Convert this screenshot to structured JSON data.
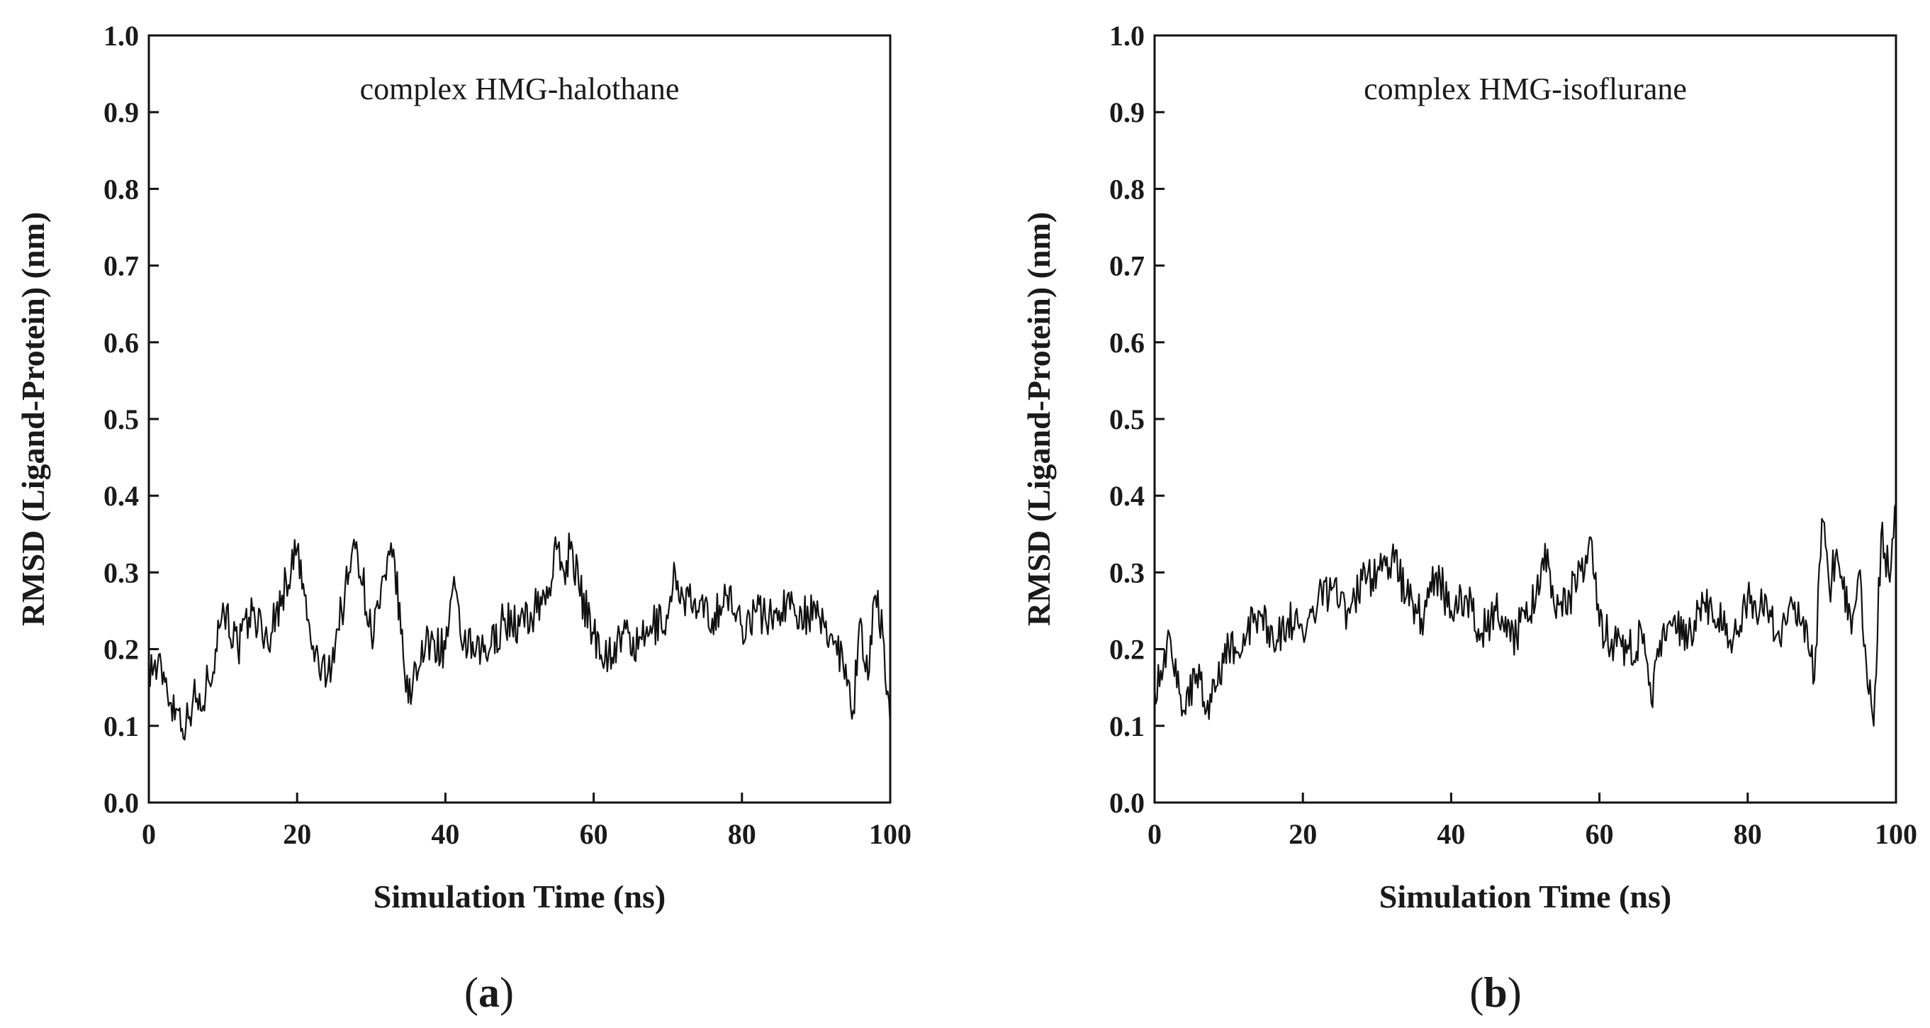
{
  "chart_data": [
    {
      "type": "line",
      "panel": "a",
      "annotation": "complex HMG-halothane",
      "xlabel": "Simulation Time (ns)",
      "ylabel": "RMSD (Ligand-Protein) (nm)",
      "xlim": [
        0,
        100
      ],
      "ylim": [
        0.0,
        1.0
      ],
      "xticks": [
        "0",
        "20",
        "40",
        "60",
        "80",
        "100"
      ],
      "yticks": [
        "0.0",
        "0.1",
        "0.2",
        "0.3",
        "0.4",
        "0.5",
        "0.6",
        "0.7",
        "0.8",
        "0.9",
        "1.0"
      ],
      "caption_open": "(",
      "caption_letter": "a",
      "caption_close": ")",
      "line_color": "#111111",
      "series": [
        {
          "name": "RMSD",
          "x": [
            0,
            2,
            3,
            4,
            5,
            6,
            7,
            8,
            9,
            10,
            12,
            14,
            16,
            18,
            20,
            22,
            24,
            26,
            27,
            28,
            30,
            32,
            33,
            34,
            35,
            36,
            38,
            40,
            41,
            42,
            44,
            46,
            48,
            50,
            52,
            54,
            55,
            56,
            57,
            58,
            60,
            62,
            64,
            66,
            68,
            70,
            71,
            72,
            74,
            76,
            78,
            80,
            82,
            84,
            86,
            88,
            90,
            92,
            94,
            95,
            96,
            97,
            98,
            99,
            100
          ],
          "values": [
            0.18,
            0.17,
            0.13,
            0.12,
            0.1,
            0.14,
            0.12,
            0.16,
            0.2,
            0.26,
            0.2,
            0.25,
            0.21,
            0.27,
            0.33,
            0.2,
            0.16,
            0.25,
            0.3,
            0.34,
            0.22,
            0.29,
            0.33,
            0.22,
            0.13,
            0.18,
            0.21,
            0.2,
            0.28,
            0.22,
            0.19,
            0.2,
            0.24,
            0.23,
            0.25,
            0.28,
            0.33,
            0.3,
            0.34,
            0.28,
            0.22,
            0.19,
            0.22,
            0.2,
            0.23,
            0.24,
            0.3,
            0.27,
            0.25,
            0.24,
            0.27,
            0.23,
            0.25,
            0.24,
            0.26,
            0.25,
            0.24,
            0.22,
            0.18,
            0.12,
            0.24,
            0.16,
            0.27,
            0.22,
            0.1
          ]
        }
      ]
    },
    {
      "type": "line",
      "panel": "b",
      "annotation": "complex HMG-isoflurane",
      "xlabel": "Simulation Time (ns)",
      "ylabel": "RMSD (Ligand-Protein) (nm)",
      "xlim": [
        0,
        100
      ],
      "ylim": [
        0.0,
        1.0
      ],
      "xticks": [
        "0",
        "20",
        "40",
        "60",
        "80",
        "100"
      ],
      "yticks": [
        "0.0",
        "0.1",
        "0.2",
        "0.3",
        "0.4",
        "0.5",
        "0.6",
        "0.7",
        "0.8",
        "0.9",
        "1.0"
      ],
      "caption_open": "(",
      "caption_letter": "b",
      "caption_close": ")",
      "line_color": "#111111",
      "series": [
        {
          "name": "RMSD",
          "x": [
            0,
            2,
            3,
            4,
            6,
            7,
            8,
            10,
            12,
            14,
            16,
            18,
            20,
            22,
            24,
            26,
            28,
            30,
            32,
            34,
            36,
            38,
            40,
            42,
            44,
            46,
            48,
            50,
            52,
            53,
            54,
            56,
            58,
            59,
            60,
            62,
            64,
            66,
            67,
            68,
            70,
            72,
            74,
            76,
            78,
            80,
            82,
            84,
            86,
            88,
            89,
            90,
            91,
            92,
            94,
            95,
            96,
            97,
            98,
            99,
            100
          ],
          "values": [
            0.15,
            0.22,
            0.15,
            0.12,
            0.18,
            0.12,
            0.16,
            0.2,
            0.22,
            0.25,
            0.21,
            0.24,
            0.22,
            0.26,
            0.28,
            0.25,
            0.29,
            0.3,
            0.32,
            0.27,
            0.24,
            0.3,
            0.25,
            0.27,
            0.22,
            0.25,
            0.21,
            0.24,
            0.28,
            0.33,
            0.25,
            0.27,
            0.3,
            0.34,
            0.23,
            0.21,
            0.2,
            0.22,
            0.13,
            0.19,
            0.24,
            0.22,
            0.26,
            0.24,
            0.21,
            0.27,
            0.25,
            0.22,
            0.26,
            0.23,
            0.16,
            0.37,
            0.28,
            0.33,
            0.22,
            0.3,
            0.18,
            0.1,
            0.35,
            0.3,
            0.39
          ]
        }
      ]
    }
  ]
}
